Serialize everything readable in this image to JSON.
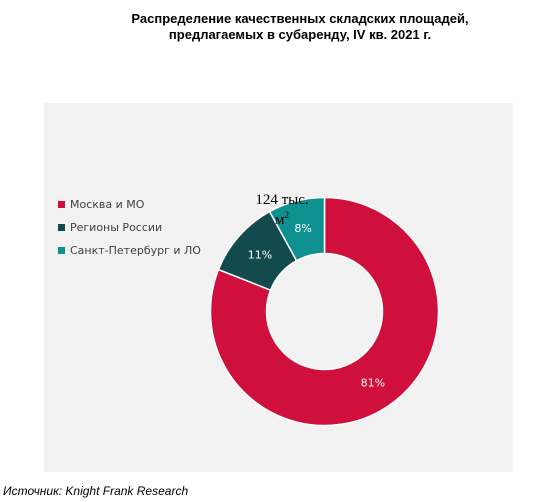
{
  "title": {
    "line1": "Распределение качественных складских площадей,",
    "line2": "предлагаемых в субаренду, IV кв. 2021 г."
  },
  "center_label": {
    "text": "124 тыс.",
    "unit": "м",
    "unit_sup": "2"
  },
  "source": "Источник: Knight Frank Research",
  "chart_data": {
    "type": "pie",
    "variant": "donut",
    "title": "Распределение качественных складских площадей, предлагаемых в субаренду, IV кв. 2021 г.",
    "legend_position": "left",
    "slices": [
      {
        "name": "Москва и МО",
        "value": 81,
        "label": "81%",
        "color": "#cf0f3c"
      },
      {
        "name": "Регионы России",
        "value": 11,
        "label": "11%",
        "color": "#124a4e"
      },
      {
        "name": "Санкт-Петербург и ЛО",
        "value": 8,
        "label": "8%",
        "color": "#0f9090"
      }
    ]
  }
}
